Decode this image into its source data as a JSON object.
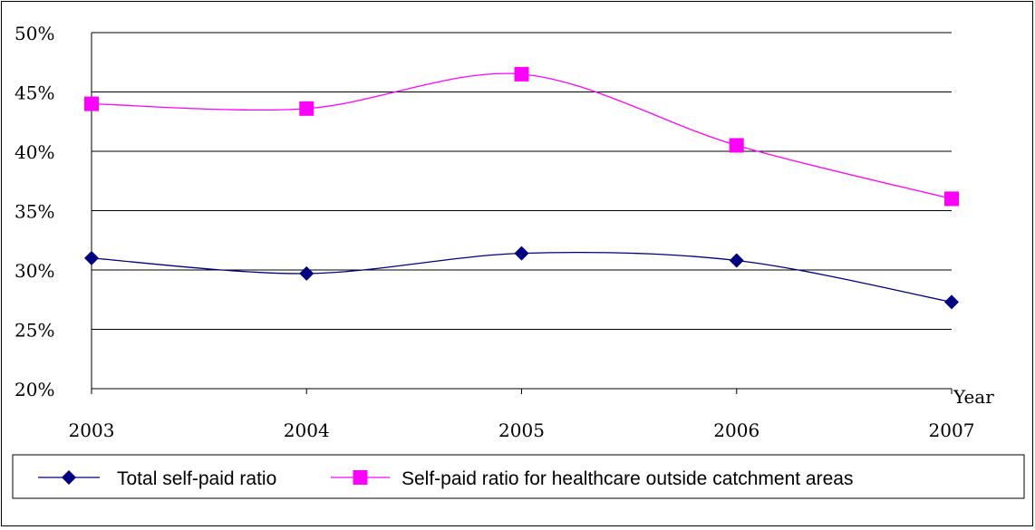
{
  "chart_data": {
    "type": "line",
    "categories": [
      "2003",
      "2004",
      "2005",
      "2006",
      "2007"
    ],
    "xlabel": "Year",
    "ylabel": "",
    "ylim": [
      20,
      50
    ],
    "yticks": [
      "20%",
      "25%",
      "30%",
      "35%",
      "40%",
      "45%",
      "50%"
    ],
    "grid": true,
    "legend_position": "bottom",
    "series": [
      {
        "name": "Total self-paid ratio",
        "values": [
          31.0,
          29.7,
          31.4,
          30.8,
          27.3
        ],
        "color": "#000080",
        "marker": "diamond"
      },
      {
        "name": "Self-paid ratio for healthcare outside catchment areas",
        "values": [
          44.0,
          43.6,
          46.5,
          40.5,
          36.0
        ],
        "color": "#ff00ff",
        "marker": "square"
      }
    ]
  }
}
